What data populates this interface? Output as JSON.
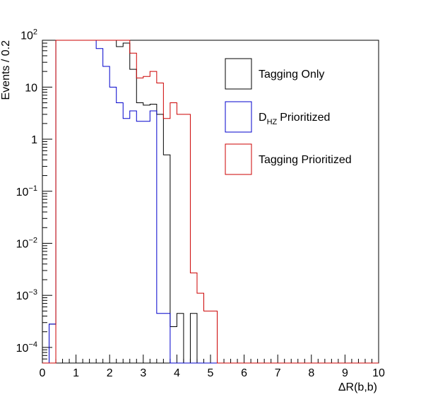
{
  "chart_data": {
    "type": "histogram",
    "title": "",
    "xlabel": "ΔR(b,b)",
    "ylabel": "Events / 0.2",
    "xlim": [
      0,
      10
    ],
    "ylim_log10": [
      -4.3,
      1.9
    ],
    "log_y": true,
    "bin_width": 0.2,
    "bin_edges_start": 0.0,
    "xticks": [
      "0",
      "1",
      "2",
      "3",
      "4",
      "5",
      "6",
      "7",
      "8",
      "9",
      "10"
    ],
    "yticks": [
      {
        "base": "10",
        "exp": "−4",
        "log": -4
      },
      {
        "base": "10",
        "exp": "−3",
        "log": -3
      },
      {
        "base": "10",
        "exp": "−2",
        "log": -2
      },
      {
        "base": "10",
        "exp": "−1",
        "log": -1
      },
      {
        "base": "1",
        "exp": "",
        "log": 0
      },
      {
        "base": "10",
        "exp": "",
        "log": 1
      },
      {
        "base": "10",
        "exp": "2",
        "log": 2
      }
    ],
    "legend_position": "top-right",
    "series": [
      {
        "name": "Tagging Only",
        "color": "#000000",
        "values": [
          0,
          0.00028,
          140,
          250,
          265,
          260,
          230,
          200,
          175,
          145,
          110,
          60,
          70,
          22,
          5,
          4.5,
          4.7,
          3,
          0.5,
          0.00025,
          0.00045,
          0,
          0.00045,
          0,
          0,
          0,
          0,
          0,
          0,
          0,
          0,
          0,
          0,
          0,
          0,
          0,
          0,
          0,
          0,
          0,
          0,
          0,
          0,
          0,
          0,
          0,
          0,
          0,
          0,
          0
        ]
      },
      {
        "name": "Prioritized",
        "label_main": "D",
        "label_sub": "HZ",
        "color": "#0000cc",
        "values": [
          0,
          0.00028,
          95,
          175,
          190,
          200,
          180,
          120,
          55,
          25,
          10,
          5,
          2.5,
          3.5,
          2.2,
          2.2,
          3.5,
          0.00045,
          0.00045,
          0,
          0,
          0,
          0,
          0,
          0,
          0,
          0,
          0,
          0,
          0,
          0,
          0,
          0,
          0,
          0,
          0,
          0,
          0,
          0,
          0,
          0,
          0,
          0,
          0,
          0,
          0,
          0,
          0,
          0,
          0
        ]
      },
      {
        "name": "Tagging Prioritized",
        "color": "#cc0000",
        "values": [
          0,
          0,
          210,
          370,
          350,
          400,
          390,
          310,
          270,
          210,
          190,
          170,
          110,
          45,
          15,
          16,
          20,
          12,
          2.5,
          5,
          3,
          3,
          0.0027,
          0.0011,
          0.0005,
          0.0005,
          0,
          0,
          0,
          0,
          0,
          0,
          0,
          0,
          0,
          0,
          0,
          0,
          0,
          0,
          0,
          0,
          0,
          0,
          0,
          0,
          0,
          0,
          0,
          0
        ]
      }
    ]
  }
}
